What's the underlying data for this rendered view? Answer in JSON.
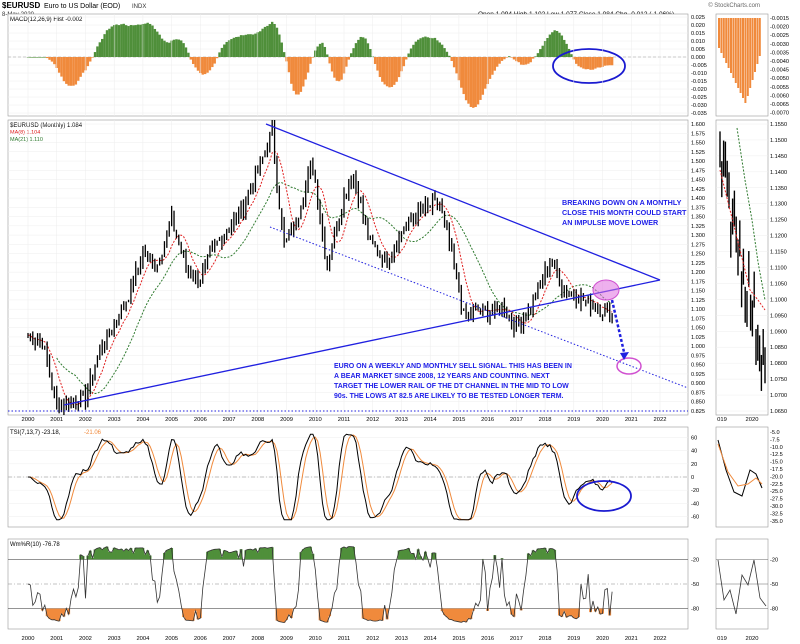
{
  "header": {
    "symbol": "$EURUSD",
    "name": "Euro to US Dollar (EOD)",
    "exchange": "INDX",
    "date": "8-May-2020",
    "quote": "Open 1.094  High 1.102  Low 1.077  Close 1.084  Chg -0.012 (-1.06%)",
    "watermark": "© StockCharts.com"
  },
  "macd_panel": {
    "label": "MACD(12,26,9) Hist -0.002",
    "ticks": [
      "0.025",
      "0.020",
      "0.015",
      "0.010",
      "0.005",
      "0.000",
      "-0.005",
      "-0.010",
      "-0.015",
      "-0.020",
      "-0.025",
      "-0.030",
      "-0.035"
    ],
    "inset_ticks": [
      "-0.0015",
      "-0.0020",
      "-0.0025",
      "-0.0030",
      "-0.0035",
      "-0.0040",
      "-0.0045",
      "-0.0050",
      "-0.0055",
      "-0.0060",
      "-0.0065",
      "-0.0070"
    ],
    "colors": {
      "positive": "#4f8f3a",
      "negative": "#f08a3c"
    }
  },
  "price_panel": {
    "label": "$EURUSD (Monthly) 1.084",
    "ma8_label": "MA(8) 1.104",
    "ma21_label": "MA(21) 1.110",
    "ticks": [
      "1.600",
      "1.575",
      "1.550",
      "1.525",
      "1.500",
      "1.475",
      "1.450",
      "1.425",
      "1.400",
      "1.375",
      "1.350",
      "1.325",
      "1.300",
      "1.275",
      "1.250",
      "1.225",
      "1.200",
      "1.175",
      "1.150",
      "1.125",
      "1.100",
      "1.075",
      "1.050",
      "1.025",
      "1.000",
      "0.975",
      "0.950",
      "0.925",
      "0.900",
      "0.875",
      "0.850",
      "0.825"
    ],
    "inset_ticks": [
      "1.1550",
      "1.1500",
      "1.1450",
      "1.1400",
      "1.1350",
      "1.1300",
      "1.1250",
      "1.1200",
      "1.1150",
      "1.1100",
      "1.1050",
      "1.1000",
      "1.0950",
      "1.0900",
      "1.0850",
      "1.0800",
      "1.0750",
      "1.0700",
      "1.0650"
    ],
    "annotation_top": "BREAKING DOWN ON A MONTHLY CLOSE THIS MONTH COULD START AN IMPULSE MOVE LOWER",
    "annotation_bottom": "EURO ON A WEEKLY AND MONTHLY SELL SIGNAL. THIS HAS BEEN IN A BEAR MARKET SINCE 2008, 12 YEARS AND COUNTING. NEXT TARGET THE LOWER RAIL OF THE DT CHANNEL IN THE MID TO LOW 90s. THE LOWS AT 82.5 ARE LIKELY TO BE TESTED LONGER TERM.",
    "colors": {
      "ma8": "#e02020",
      "ma21": "#2f7a2f",
      "trend": "#2020e0",
      "highlight": "#e070e0"
    }
  },
  "tsi_panel": {
    "label": "TSI(7,13,7) -23.18,",
    "signal_label": "-21.06",
    "ticks": [
      "60",
      "40",
      "20",
      "0",
      "-20",
      "-40",
      "-60"
    ],
    "inset_ticks": [
      "-5.0",
      "-7.5",
      "-10.0",
      "-12.5",
      "-15.0",
      "-17.5",
      "-20.0",
      "-22.5",
      "-25.0",
      "-27.5",
      "-30.0",
      "-32.5",
      "-35.0"
    ]
  },
  "willr_panel": {
    "label": "Wm%R(10) -76.78",
    "ticks": [
      "-20",
      "-50",
      "-80"
    ],
    "inset_ticks": [
      "-20",
      "-50",
      "-80"
    ]
  },
  "x_axis": {
    "years": [
      "2000",
      "2001",
      "2002",
      "2003",
      "2004",
      "2005",
      "2006",
      "2007",
      "2008",
      "2009",
      "2010",
      "2011",
      "2012",
      "2013",
      "2014",
      "2015",
      "2016",
      "2017",
      "2018",
      "2019",
      "2020",
      "2021",
      "2022"
    ],
    "inset_years": [
      "019",
      "2020"
    ]
  },
  "chart_data": {
    "type": "line",
    "title": "$EURUSD (Monthly) 1.084",
    "series": [
      {
        "name": "$EURUSD",
        "x": [
          2000.0,
          2000.5,
          2001.0,
          2001.5,
          2002.0,
          2002.5,
          2003.0,
          2003.5,
          2004.0,
          2004.5,
          2005.0,
          2005.5,
          2006.0,
          2006.5,
          2007.0,
          2007.5,
          2008.0,
          2008.5,
          2008.9,
          2009.3,
          2009.9,
          2010.4,
          2010.9,
          2011.3,
          2011.9,
          2012.5,
          2013.0,
          2013.6,
          2014.3,
          2014.8,
          2015.2,
          2015.6,
          2016.0,
          2016.5,
          2017.0,
          2017.4,
          2017.9,
          2018.2,
          2018.6,
          2019.0,
          2019.5,
          2020.0,
          2020.35
        ],
        "values": [
          1.03,
          1.01,
          0.84,
          0.85,
          0.86,
          0.99,
          1.06,
          1.14,
          1.25,
          1.22,
          1.34,
          1.21,
          1.18,
          1.27,
          1.32,
          1.38,
          1.47,
          1.58,
          1.27,
          1.33,
          1.5,
          1.22,
          1.38,
          1.47,
          1.28,
          1.23,
          1.31,
          1.36,
          1.39,
          1.23,
          1.07,
          1.1,
          1.09,
          1.11,
          1.05,
          1.09,
          1.18,
          1.24,
          1.16,
          1.14,
          1.12,
          1.1,
          1.084
        ]
      }
    ],
    "ylim": [
      0.825,
      1.6
    ]
  }
}
